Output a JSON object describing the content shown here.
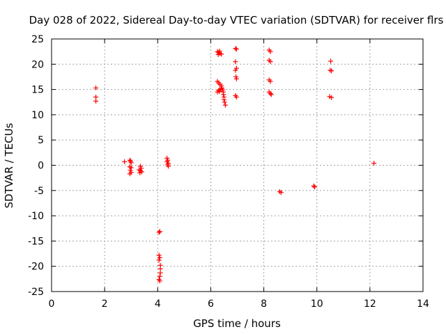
{
  "chart_data": {
    "type": "scatter",
    "title": "Day 028 of 2022, Sidereal Day-to-day VTEC variation (SDTVAR) for receiver flrs",
    "xlabel": "GPS time / hours",
    "ylabel": "SDTVAR / TECUs",
    "xlim": [
      0,
      14
    ],
    "ylim": [
      -25,
      25
    ],
    "xticks": [
      0,
      2,
      4,
      6,
      8,
      10,
      12,
      14
    ],
    "yticks": [
      -25,
      -20,
      -15,
      -10,
      -5,
      0,
      5,
      10,
      15,
      20,
      25
    ],
    "grid": true,
    "marker": "+",
    "color": "#ff0000",
    "series": [
      {
        "name": "SDTVAR",
        "points": [
          [
            1.67,
            15.3
          ],
          [
            1.67,
            13.5
          ],
          [
            1.67,
            12.7
          ],
          [
            2.75,
            0.7
          ],
          [
            2.95,
            1.0
          ],
          [
            2.98,
            0.8
          ],
          [
            3.0,
            0.5
          ],
          [
            2.95,
            -0.3
          ],
          [
            3.0,
            -0.5
          ],
          [
            2.97,
            -1.0
          ],
          [
            3.0,
            -1.4
          ],
          [
            2.95,
            -1.7
          ],
          [
            3.35,
            -0.2
          ],
          [
            3.38,
            -0.6
          ],
          [
            3.3,
            -0.9
          ],
          [
            3.35,
            -1.1
          ],
          [
            3.4,
            -1.3
          ],
          [
            3.33,
            -1.5
          ],
          [
            4.05,
            -13.3
          ],
          [
            4.08,
            -13.1
          ],
          [
            4.05,
            -17.8
          ],
          [
            4.08,
            -18.3
          ],
          [
            4.05,
            -18.8
          ],
          [
            4.1,
            -19.8
          ],
          [
            4.1,
            -20.5
          ],
          [
            4.1,
            -21.3
          ],
          [
            4.08,
            -22.0
          ],
          [
            4.05,
            -22.6
          ],
          [
            4.08,
            -22.9
          ],
          [
            4.35,
            1.4
          ],
          [
            4.38,
            1.0
          ],
          [
            4.35,
            0.7
          ],
          [
            4.4,
            0.4
          ],
          [
            4.38,
            0.1
          ],
          [
            4.4,
            -0.2
          ],
          [
            6.25,
            22.5
          ],
          [
            6.3,
            22.3
          ],
          [
            6.35,
            22.1
          ],
          [
            6.4,
            22.0
          ],
          [
            6.33,
            22.6
          ],
          [
            6.28,
            21.9
          ],
          [
            6.25,
            16.6
          ],
          [
            6.3,
            16.3
          ],
          [
            6.35,
            16.0
          ],
          [
            6.4,
            15.7
          ],
          [
            6.42,
            15.3
          ],
          [
            6.45,
            14.9
          ],
          [
            6.47,
            14.5
          ],
          [
            6.48,
            14.0
          ],
          [
            6.5,
            13.5
          ],
          [
            6.5,
            13.0
          ],
          [
            6.52,
            12.5
          ],
          [
            6.55,
            11.9
          ],
          [
            6.25,
            14.5
          ],
          [
            6.3,
            14.8
          ],
          [
            6.35,
            15.0
          ],
          [
            6.4,
            15.2
          ],
          [
            6.33,
            14.6
          ],
          [
            6.93,
            23.1
          ],
          [
            6.97,
            23.0
          ],
          [
            6.93,
            20.5
          ],
          [
            6.97,
            19.2
          ],
          [
            6.93,
            18.8
          ],
          [
            6.95,
            17.5
          ],
          [
            6.97,
            17.1
          ],
          [
            6.93,
            13.8
          ],
          [
            6.97,
            13.5
          ],
          [
            8.2,
            22.8
          ],
          [
            8.25,
            22.5
          ],
          [
            8.2,
            20.8
          ],
          [
            8.25,
            20.5
          ],
          [
            8.2,
            16.9
          ],
          [
            8.25,
            16.6
          ],
          [
            8.2,
            14.5
          ],
          [
            8.25,
            14.2
          ],
          [
            8.28,
            14.0
          ],
          [
            8.6,
            -5.2
          ],
          [
            8.65,
            -5.4
          ],
          [
            9.88,
            -4.1
          ],
          [
            9.92,
            -4.3
          ],
          [
            10.52,
            20.6
          ],
          [
            10.5,
            18.8
          ],
          [
            10.55,
            18.7
          ],
          [
            10.48,
            13.6
          ],
          [
            10.55,
            13.4
          ],
          [
            12.15,
            0.4
          ]
        ]
      }
    ]
  }
}
